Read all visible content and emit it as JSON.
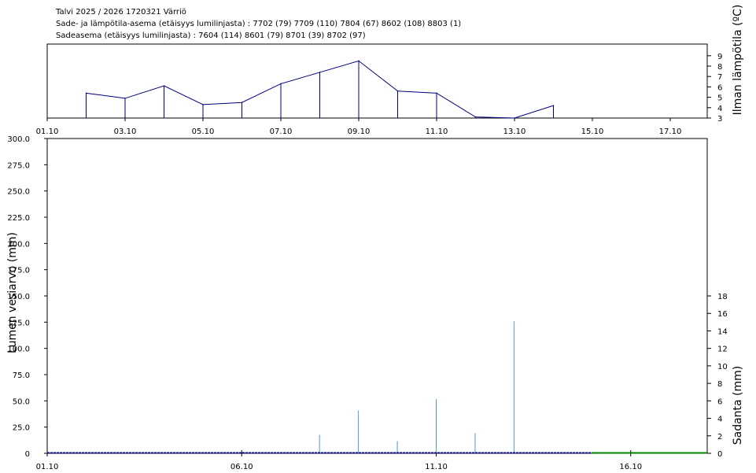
{
  "header": {
    "line1": "Talvi 2025 / 2026 1720321 Värriö",
    "line2": "Sade- ja lämpötila-asema (etäisyys lumilinjasta) :  7702 (79) 7709 (110) 7804 (67) 8602 (108) 8803 (1)",
    "line3": "Sadeasema (etäisyys lumilinjasta) :  7604 (114) 8601 (79) 8701 (39) 8702 (97)"
  },
  "chart_data": [
    {
      "type": "line",
      "ylabel": "Ilman lämpötila (ºC)",
      "x_ticks": [
        "01.10",
        "03.10",
        "05.10",
        "07.10",
        "09.10",
        "11.10",
        "13.10",
        "15.10",
        "17.10"
      ],
      "y_ticks": [
        "3",
        "4",
        "5",
        "6",
        "7",
        "8",
        "9"
      ],
      "ylim": [
        3,
        10
      ],
      "y_axis_side": "right",
      "series": [
        {
          "day": [
            2,
            3,
            4,
            5,
            6,
            7,
            8,
            9,
            10,
            11,
            12,
            13,
            14
          ],
          "values": [
            5.4,
            4.9,
            6.1,
            4.3,
            4.5,
            6.3,
            7.4,
            8.5,
            5.6,
            5.4,
            3.1,
            3.0,
            4.2
          ],
          "color": "#00007f"
        }
      ]
    },
    {
      "type": "bar",
      "ylabel": "Lumen vesiarvo (mm)",
      "y2label": "Sadanta (mm)",
      "x_ticks": [
        "01.10",
        "06.10",
        "11.10",
        "16.10"
      ],
      "y_ticks": [
        "0",
        "25.0",
        "50.0",
        "75.0",
        "100.0",
        "125.0",
        "150.0",
        "175.0",
        "200.0",
        "225.0",
        "250.0",
        "275.0",
        "300.0"
      ],
      "y2_ticks": [
        "0",
        "2",
        "4",
        "6",
        "8",
        "10",
        "12",
        "14",
        "16",
        "18"
      ],
      "ylim": [
        0,
        300
      ],
      "y2lim": [
        0,
        36
      ],
      "precipitation": {
        "day": [
          8,
          9,
          10,
          11,
          12,
          13
        ],
        "values": [
          2.1,
          4.9,
          1.4,
          6.2,
          2.3,
          15.1
        ],
        "color": "#4a9ad6"
      },
      "snow_water_equivalent": {
        "day_start": 1,
        "day_end": 15.0,
        "value": 0,
        "color": "#00007f"
      },
      "green_line": {
        "day_start": 15.0,
        "day_end": 19,
        "value": 0,
        "color": "#007f00"
      }
    }
  ]
}
